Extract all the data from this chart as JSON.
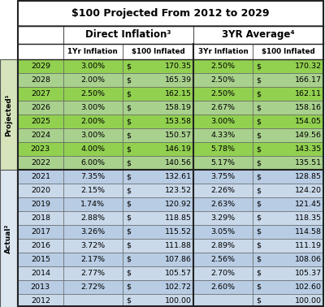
{
  "title": "$100 Projected From 2012 to 2029",
  "rows": [
    [
      "2029",
      "3.00%",
      "$",
      "170.35",
      "2.50%",
      "$",
      "170.32"
    ],
    [
      "2028",
      "2.00%",
      "$",
      "165.39",
      "2.50%",
      "$",
      "166.17"
    ],
    [
      "2027",
      "2.50%",
      "$",
      "162.15",
      "2.50%",
      "$",
      "162.11"
    ],
    [
      "2026",
      "3.00%",
      "$",
      "158.19",
      "2.67%",
      "$",
      "158.16"
    ],
    [
      "2025",
      "2.00%",
      "$",
      "153.58",
      "3.00%",
      "$",
      "154.05"
    ],
    [
      "2024",
      "3.00%",
      "$",
      "150.57",
      "4.33%",
      "$",
      "149.56"
    ],
    [
      "2023",
      "4.00%",
      "$",
      "146.19",
      "5.78%",
      "$",
      "143.35"
    ],
    [
      "2022",
      "6.00%",
      "$",
      "140.56",
      "5.17%",
      "$",
      "135.51"
    ],
    [
      "2021",
      "7.35%",
      "$",
      "132.61",
      "3.75%",
      "$",
      "128.85"
    ],
    [
      "2020",
      "2.15%",
      "$",
      "123.52",
      "2.26%",
      "$",
      "124.20"
    ],
    [
      "2019",
      "1.74%",
      "$",
      "120.92",
      "2.63%",
      "$",
      "121.45"
    ],
    [
      "2018",
      "2.88%",
      "$",
      "118.85",
      "3.29%",
      "$",
      "118.35"
    ],
    [
      "2017",
      "3.26%",
      "$",
      "115.52",
      "3.05%",
      "$",
      "114.58"
    ],
    [
      "2016",
      "3.72%",
      "$",
      "111.88",
      "2.89%",
      "$",
      "111.19"
    ],
    [
      "2015",
      "2.17%",
      "$",
      "107.86",
      "2.56%",
      "$",
      "108.06"
    ],
    [
      "2014",
      "2.77%",
      "$",
      "105.57",
      "2.70%",
      "$",
      "105.37"
    ],
    [
      "2013",
      "2.72%",
      "$",
      "102.72",
      "2.60%",
      "$",
      "102.60"
    ],
    [
      "2012",
      "",
      "$",
      "100.00",
      "",
      "$",
      "100.00"
    ]
  ],
  "projected_rows": 8,
  "actual_rows": 10,
  "row_label_projected": "Projected¹",
  "row_label_actual": "Actual²",
  "projected_bg_even": "#92d050",
  "projected_bg_odd": "#a9d18e",
  "actual_bg_even": "#b8cce4",
  "actual_bg_odd": "#c9d9ea",
  "header_bg": "#ffffff",
  "border_color": "#555555",
  "text_color": "#000000"
}
